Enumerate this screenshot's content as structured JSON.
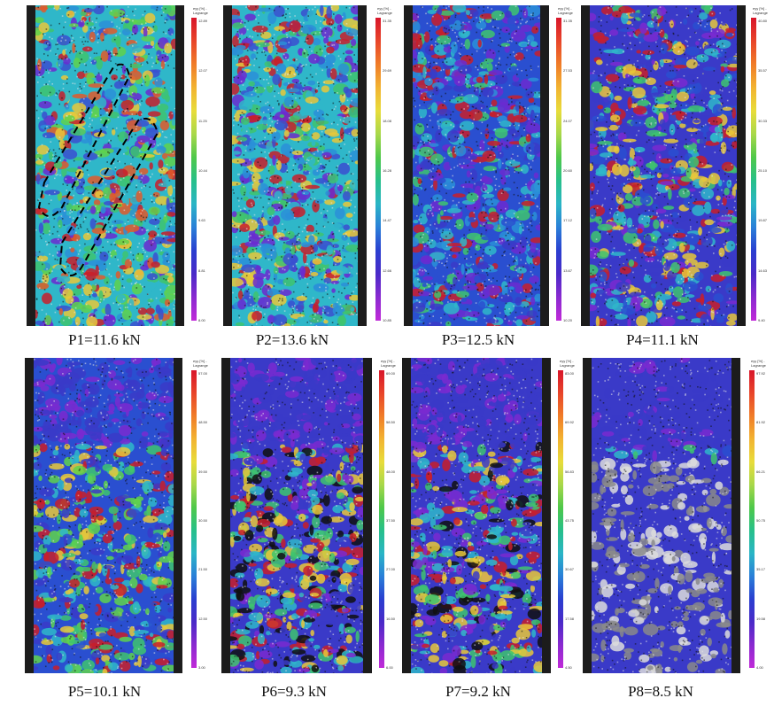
{
  "colorbar": {
    "title_line1": "eyy [%] -",
    "title_line2": "Lagrange",
    "colors": [
      "#d8152a",
      "#e8452a",
      "#f07c28",
      "#f2b331",
      "#e8dc3a",
      "#a8d84a",
      "#4fc84a",
      "#27c08a",
      "#2ab5c6",
      "#2a7fd8",
      "#2a3fd0",
      "#4a2ac8",
      "#8a2ad0",
      "#c02ad8"
    ]
  },
  "panels": [
    {
      "label": "P1=11.6 kN",
      "ticks": [
        "12.89",
        "12.07",
        "11.25",
        "10.44",
        "9.63",
        "8.81",
        "8.00"
      ],
      "palette": "p1"
    },
    {
      "label": "P2=13.6 kN",
      "ticks": [
        "31.35",
        "29.69",
        "18.08",
        "16.28",
        "14.47",
        "12.66",
        "10.85"
      ],
      "palette": "p2"
    },
    {
      "label": "P3=12.5 kN",
      "ticks": [
        "31.35",
        "27.53",
        "24.07",
        "20.60",
        "17.12",
        "13.67",
        "10.20"
      ],
      "palette": "p3"
    },
    {
      "label": "P4=11.1 kN",
      "ticks": [
        "40.80",
        "35.57",
        "30.33",
        "25.10",
        "19.87",
        "14.63",
        "9.40"
      ],
      "palette": "p4"
    },
    {
      "label": "P5=10.1 kN",
      "ticks": [
        "57.00",
        "48.50",
        "39.50",
        "30.50",
        "21.50",
        "12.50",
        "3.00"
      ],
      "palette": "p5"
    },
    {
      "label": "P6=9.3 kN",
      "ticks": [
        "69.00",
        "58.50",
        "48.00",
        "37.50",
        "27.00",
        "16.50",
        "6.00"
      ],
      "palette": "p6"
    },
    {
      "label": "P7=9.2 kN",
      "ticks": [
        "83.00",
        "69.92",
        "56.83",
        "43.75",
        "30.67",
        "17.58",
        "4.50"
      ],
      "palette": "p7"
    },
    {
      "label": "P8=8.5 kN",
      "ticks": [
        "97.92",
        "81.92",
        "66.21",
        "50.75",
        "35.17",
        "19.58",
        "4.00"
      ],
      "palette": "p8"
    }
  ]
}
